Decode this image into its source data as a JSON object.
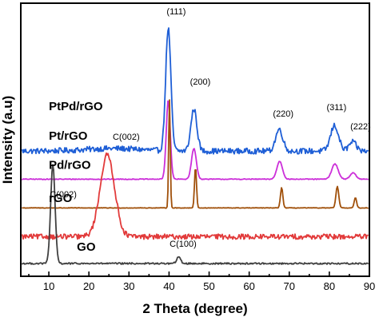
{
  "chart_data": {
    "type": "line",
    "title": "",
    "xlabel": "2 Theta (degree)",
    "ylabel": "Intensity (a.u)",
    "xlim": [
      3,
      90
    ],
    "xticks": [
      10,
      20,
      30,
      40,
      50,
      60,
      70,
      80,
      90
    ],
    "stacked_offset": true,
    "y_ticks_shown": false,
    "grid": false,
    "legend": "none",
    "series": [
      {
        "name": "PtPd/rGO",
        "color": "#1f5fd6",
        "baseline": 0.88,
        "noise": 0.022,
        "hump": {
          "center": 26,
          "width": 7,
          "height": 0.02
        },
        "peaks": [
          {
            "x": 39.8,
            "height": 0.96,
            "width": 0.65
          },
          {
            "x": 46.2,
            "height": 0.33,
            "width": 0.75
          },
          {
            "x": 67.5,
            "height": 0.17,
            "width": 0.9
          },
          {
            "x": 81.3,
            "height": 0.2,
            "width": 1.0
          },
          {
            "x": 85.8,
            "height": 0.07,
            "width": 0.9
          }
        ]
      },
      {
        "name": "Pt/rGO",
        "color": "#cc2fd9",
        "baseline": 0.66,
        "noise": 0.003,
        "peaks": [
          {
            "x": 39.8,
            "height": 0.62,
            "width": 0.5
          },
          {
            "x": 46.2,
            "height": 0.24,
            "width": 0.6
          },
          {
            "x": 67.6,
            "height": 0.14,
            "width": 0.7
          },
          {
            "x": 81.4,
            "height": 0.12,
            "width": 0.8
          },
          {
            "x": 85.9,
            "height": 0.05,
            "width": 0.7
          }
        ]
      },
      {
        "name": "Pd/rGO",
        "color": "#a0500a",
        "baseline": 0.435,
        "noise": 0.002,
        "peaks": [
          {
            "x": 40.1,
            "height": 0.85,
            "width": 0.2
          },
          {
            "x": 46.6,
            "height": 0.32,
            "width": 0.25
          },
          {
            "x": 68.1,
            "height": 0.16,
            "width": 0.3
          },
          {
            "x": 82.0,
            "height": 0.17,
            "width": 0.35
          },
          {
            "x": 86.5,
            "height": 0.08,
            "width": 0.3
          }
        ]
      },
      {
        "name": "rGO",
        "color": "#e23b3b",
        "baseline": 0.21,
        "noise": 0.02,
        "peaks": [
          {
            "x": 24.6,
            "height": 0.64,
            "width": 1.8
          }
        ]
      },
      {
        "name": "GO",
        "color": "#404040",
        "baseline": 0.0,
        "noise": 0.006,
        "peaks": [
          {
            "x": 11.0,
            "height": 0.77,
            "width": 0.55
          },
          {
            "x": 42.4,
            "height": 0.05,
            "width": 0.5
          }
        ]
      }
    ],
    "annotations": [
      {
        "text": "(111)",
        "x": 41.8,
        "y": 1.95
      },
      {
        "text": "(200)",
        "x": 47.8,
        "y": 1.4
      },
      {
        "text": "(220)",
        "x": 68.5,
        "y": 1.15
      },
      {
        "text": "(311)",
        "x": 81.8,
        "y": 1.2
      },
      {
        "text": "(222)",
        "x": 87.8,
        "y": 1.05
      },
      {
        "text": "C(002)",
        "x": 29.3,
        "y": 0.97
      },
      {
        "text": "C(002)",
        "x": 13.6,
        "y": 0.52
      },
      {
        "text": "C(100)",
        "x": 43.5,
        "y": 0.13
      }
    ],
    "series_labels": [
      {
        "text": "PtPd/rGO",
        "x": 10.0,
        "y": 1.2
      },
      {
        "text": "Pt/rGO",
        "x": 10.0,
        "y": 0.97
      },
      {
        "text": "Pd/rGO",
        "x": 10.0,
        "y": 0.74
      },
      {
        "text": "rGO",
        "x": 10.0,
        "y": 0.48
      },
      {
        "text": "GO",
        "x": 17.0,
        "y": 0.1
      }
    ]
  }
}
